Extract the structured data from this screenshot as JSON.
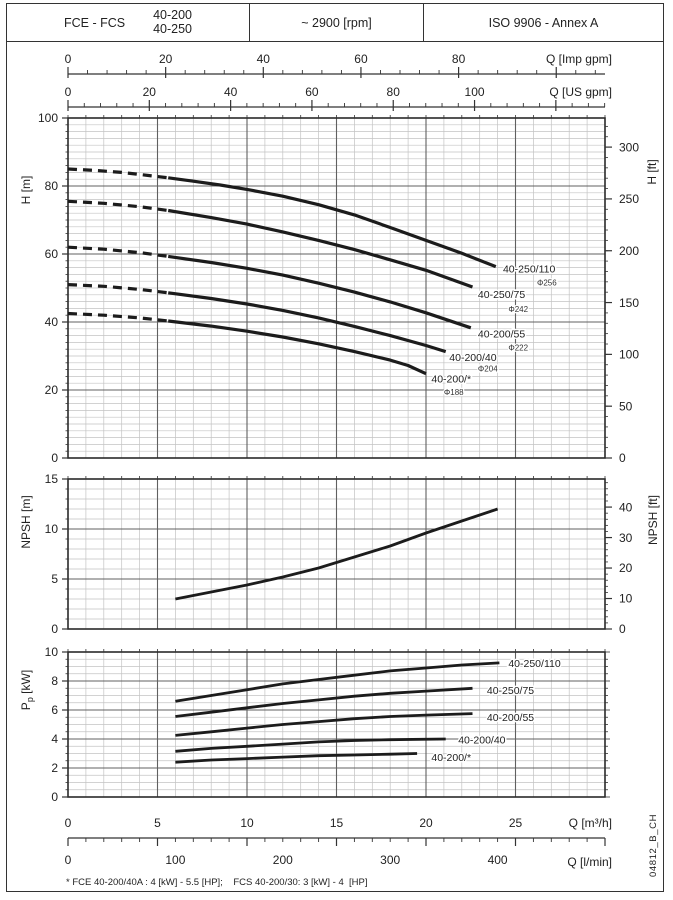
{
  "header": {
    "series": "FCE - FCS",
    "sizes": [
      "40-200",
      "40-250"
    ],
    "speed": "~ 2900 [rpm]",
    "standard": "ISO 9906 - Annex A"
  },
  "footnote": "* FCE 40-200/40A : 4 [kW] - 5.5 [HP];    FCS 40-200/30: 3 [kW] - 4  [HP]",
  "side_code": "04812_B_CH",
  "colors": {
    "curve": "#1c1c1c",
    "grid_minor": "#c3c3c3",
    "grid_major": "#606060",
    "frame": "#2a2a2a",
    "axis": "#333333",
    "text": "#222222"
  },
  "x_axes": {
    "top": [
      {
        "id": "imp",
        "label": "Q [Imp gpm]",
        "tick_labels": [
          0,
          20,
          40,
          60,
          80
        ],
        "major_step": 20,
        "minor_step": 4,
        "units_per_m3h": 3.6662
      },
      {
        "id": "us",
        "label": "Q [US gpm]",
        "tick_labels": [
          0,
          20,
          40,
          60,
          80,
          100
        ],
        "major_step": 20,
        "minor_step": 4,
        "units_per_m3h": 4.4029
      }
    ],
    "bottom": [
      {
        "id": "m3h",
        "label": "Q [m³/h]",
        "tick_labels": [
          0,
          5,
          10,
          15,
          20,
          25
        ],
        "major_step": 5,
        "minor_step": 1,
        "units_per_m3h": 1
      },
      {
        "id": "lmin",
        "label": "Q [l/min]",
        "tick_labels": [
          0,
          100,
          200,
          300,
          400
        ],
        "major_step": 100,
        "minor_step": 20,
        "units_per_m3h": 16.6667
      }
    ]
  },
  "chart_data": [
    {
      "id": "head_capacity",
      "type": "line",
      "ylabel": "H [m]",
      "ylim": [
        0,
        100
      ],
      "yticks": [
        0,
        20,
        40,
        60,
        80,
        100
      ],
      "y_minor_step": 2,
      "xlim": [
        0,
        30
      ],
      "x_major_step": 5,
      "x_minor_step": 1,
      "grid": true,
      "right_axis": {
        "label": "H [ft]",
        "tick_labels": [
          0,
          50,
          100,
          150,
          200,
          250,
          300
        ],
        "major_step": 50,
        "minor_step": 10,
        "m_per_unit": 0.3048
      },
      "series": [
        {
          "name": "40-250/110",
          "impeller": "Φ256",
          "dashed_until": 5.6,
          "points": [
            [
              0,
              85
            ],
            [
              1.5,
              84.6
            ],
            [
              3,
              84
            ],
            [
              4.5,
              83.1
            ],
            [
              5.6,
              82.4
            ],
            [
              7,
              81.4
            ],
            [
              8.5,
              80.3
            ],
            [
              10,
              79
            ],
            [
              12,
              77
            ],
            [
              14,
              74.5
            ],
            [
              16,
              71.5
            ],
            [
              18,
              67.8
            ],
            [
              20,
              64
            ],
            [
              22,
              60.2
            ],
            [
              23.9,
              56.3
            ]
          ],
          "label_at": [
            24.3,
            54.5
          ],
          "impeller_at": [
            26.2,
            50.8
          ]
        },
        {
          "name": "40-250/75",
          "impeller": "Φ242",
          "dashed_until": 5.6,
          "points": [
            [
              0,
              75.5
            ],
            [
              2,
              74.9
            ],
            [
              4,
              73.9
            ],
            [
              5.6,
              72.8
            ],
            [
              8,
              70.7
            ],
            [
              10,
              68.8
            ],
            [
              12,
              66.5
            ],
            [
              14,
              64
            ],
            [
              16,
              61.3
            ],
            [
              18,
              58.3
            ],
            [
              20,
              55.2
            ],
            [
              22.6,
              50.3
            ]
          ],
          "label_at": [
            22.9,
            47.0
          ],
          "impeller_at": [
            24.6,
            42.9
          ]
        },
        {
          "name": "40-200/55",
          "impeller": "Φ222",
          "dashed_until": 5.6,
          "points": [
            [
              0,
              62
            ],
            [
              2,
              61.4
            ],
            [
              4,
              60.4
            ],
            [
              5.6,
              59.3
            ],
            [
              8,
              57.5
            ],
            [
              10,
              55.8
            ],
            [
              12,
              53.8
            ],
            [
              14,
              51.4
            ],
            [
              16,
              48.8
            ],
            [
              18,
              45.9
            ],
            [
              20,
              42.7
            ],
            [
              22.5,
              38.3
            ]
          ],
          "label_at": [
            22.9,
            35.4
          ],
          "impeller_at": [
            24.6,
            31.6
          ]
        },
        {
          "name": "40-200/40",
          "impeller": "Φ204",
          "dashed_until": 5.6,
          "points": [
            [
              0,
              51
            ],
            [
              2,
              50.5
            ],
            [
              4,
              49.6
            ],
            [
              5.6,
              48.6
            ],
            [
              8,
              46.9
            ],
            [
              10,
              45.3
            ],
            [
              12,
              43.4
            ],
            [
              14,
              41.2
            ],
            [
              16,
              38.7
            ],
            [
              18,
              36
            ],
            [
              20,
              33.1
            ],
            [
              21.1,
              31.3
            ]
          ],
          "label_at": [
            21.3,
            28.6
          ],
          "impeller_at": [
            22.9,
            25.4
          ]
        },
        {
          "name": "40-200/*",
          "impeller": "Φ188",
          "dashed_until": 5.6,
          "points": [
            [
              0,
              42.5
            ],
            [
              2,
              42
            ],
            [
              4,
              41.2
            ],
            [
              5.6,
              40.3
            ],
            [
              8,
              38.8
            ],
            [
              10,
              37.3
            ],
            [
              12,
              35.6
            ],
            [
              14,
              33.6
            ],
            [
              16,
              31.3
            ],
            [
              18,
              28.8
            ],
            [
              19,
              27.2
            ],
            [
              20,
              24.8
            ]
          ],
          "label_at": [
            20.3,
            22.2
          ],
          "impeller_at": [
            21.0,
            18.6
          ]
        }
      ]
    },
    {
      "id": "npsh",
      "type": "line",
      "ylabel": "NPSH [m]",
      "ylim": [
        0,
        15
      ],
      "yticks": [
        0,
        5,
        10,
        15
      ],
      "y_minor_step": 1,
      "xlim": [
        0,
        30
      ],
      "x_major_step": 5,
      "x_minor_step": 1,
      "grid": true,
      "right_axis": {
        "label": "NPSH [ft]",
        "tick_labels": [
          0,
          10,
          20,
          30,
          40
        ],
        "major_step": 10,
        "minor_step": 2,
        "m_per_unit": 0.3048
      },
      "series": [
        {
          "name": "NPSH",
          "points": [
            [
              6,
              3
            ],
            [
              8,
              3.7
            ],
            [
              10,
              4.4
            ],
            [
              12,
              5.2
            ],
            [
              14,
              6.1
            ],
            [
              16,
              7.2
            ],
            [
              18,
              8.3
            ],
            [
              20,
              9.6
            ],
            [
              22,
              10.8
            ],
            [
              24,
              12
            ]
          ]
        }
      ]
    },
    {
      "id": "power",
      "type": "line",
      "ylabel_parts": {
        "base": "P",
        "sub": "p",
        "rest": " [kW]"
      },
      "ylim": [
        0,
        10
      ],
      "yticks": [
        0,
        2,
        4,
        6,
        8,
        10
      ],
      "y_minor_step": 0.5,
      "xlim": [
        0,
        30
      ],
      "x_major_step": 5,
      "x_minor_step": 1,
      "grid": true,
      "series": [
        {
          "name": "40-250/110",
          "points": [
            [
              6,
              6.6
            ],
            [
              8,
              7
            ],
            [
              10,
              7.4
            ],
            [
              12,
              7.8
            ],
            [
              14,
              8.1
            ],
            [
              16,
              8.4
            ],
            [
              18,
              8.7
            ],
            [
              20,
              8.9
            ],
            [
              22,
              9.1
            ],
            [
              24.1,
              9.25
            ]
          ],
          "label_at": [
            24.6,
            8.95
          ]
        },
        {
          "name": "40-250/75",
          "points": [
            [
              6,
              5.55
            ],
            [
              8,
              5.85
            ],
            [
              10,
              6.15
            ],
            [
              12,
              6.45
            ],
            [
              14,
              6.7
            ],
            [
              16,
              6.95
            ],
            [
              18,
              7.15
            ],
            [
              20,
              7.3
            ],
            [
              22.6,
              7.5
            ]
          ],
          "label_at": [
            23.4,
            7.1
          ]
        },
        {
          "name": "40-200/55",
          "points": [
            [
              6,
              4.25
            ],
            [
              8,
              4.5
            ],
            [
              10,
              4.75
            ],
            [
              12,
              5
            ],
            [
              14,
              5.2
            ],
            [
              16,
              5.4
            ],
            [
              18,
              5.55
            ],
            [
              20,
              5.65
            ],
            [
              22.6,
              5.75
            ]
          ],
          "label_at": [
            23.4,
            5.25
          ]
        },
        {
          "name": "40-200/40",
          "points": [
            [
              6,
              3.15
            ],
            [
              8,
              3.35
            ],
            [
              10,
              3.5
            ],
            [
              12,
              3.65
            ],
            [
              14,
              3.8
            ],
            [
              16,
              3.9
            ],
            [
              18,
              3.95
            ],
            [
              21.1,
              4
            ]
          ],
          "label_at": [
            21.8,
            3.7
          ]
        },
        {
          "name": "40-200/*",
          "points": [
            [
              6,
              2.4
            ],
            [
              8,
              2.55
            ],
            [
              10,
              2.65
            ],
            [
              12,
              2.75
            ],
            [
              14,
              2.85
            ],
            [
              16,
              2.9
            ],
            [
              18,
              2.95
            ],
            [
              19.5,
              3
            ]
          ],
          "label_at": [
            20.3,
            2.5
          ]
        }
      ]
    }
  ]
}
